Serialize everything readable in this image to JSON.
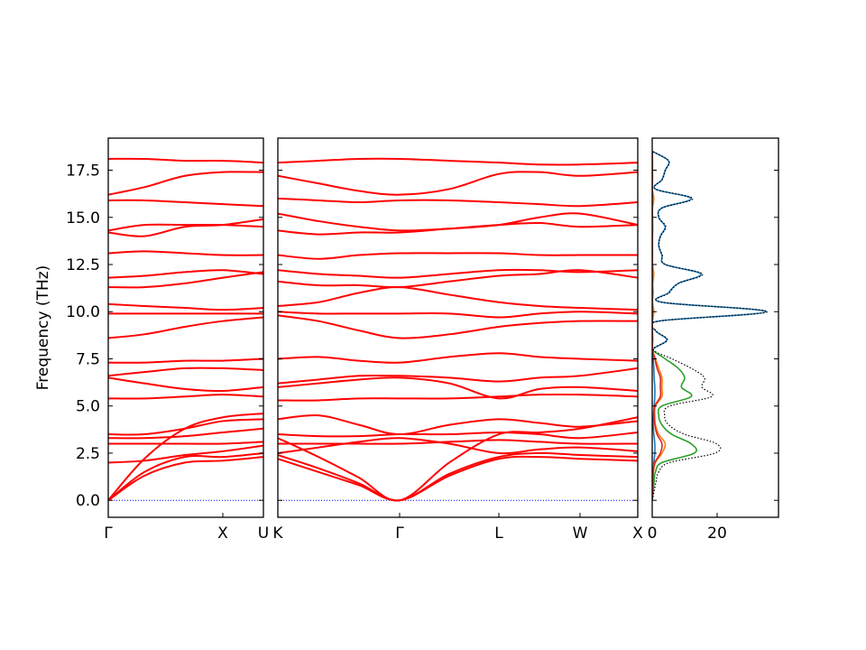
{
  "chart_data": [
    {
      "type": "line",
      "color": "#ff0000",
      "ylabel": "Frequency (THz)",
      "x": [
        0,
        0.4,
        0.85,
        1.27,
        1.72
      ],
      "xlim": [
        0,
        1.72
      ],
      "ylim": [
        -0.9,
        19.2
      ],
      "xticks": [
        {
          "value": 0,
          "label": "Γ"
        },
        {
          "value": 1.27,
          "label": "X"
        },
        {
          "value": 1.72,
          "label": "U"
        }
      ],
      "yticks": [
        {
          "value": 0,
          "label": "0.0"
        },
        2.5,
        {
          "value": 5,
          "label": "5.0"
        },
        7.5,
        {
          "value": 10,
          "label": "10.0"
        },
        12.5,
        {
          "value": 15,
          "label": "15.0"
        },
        17.5
      ],
      "hline": {
        "y": 0,
        "color": "#0000ff"
      },
      "series": [
        {
          "values": [
            0,
            1.3,
            2.0,
            2.1,
            2.3
          ]
        },
        {
          "values": [
            0,
            1.5,
            2.3,
            2.3,
            2.5
          ]
        },
        {
          "values": [
            0,
            2.2,
            3.8,
            4.4,
            4.6
          ]
        },
        {
          "values": [
            2.0,
            2.1,
            2.4,
            2.6,
            2.9
          ]
        },
        {
          "values": [
            3.0,
            3.0,
            3.0,
            3.0,
            3.1
          ]
        },
        {
          "values": [
            3.3,
            3.3,
            3.4,
            3.6,
            3.8
          ]
        },
        {
          "values": [
            3.5,
            3.5,
            3.8,
            4.2,
            4.3
          ]
        },
        {
          "values": [
            5.4,
            5.4,
            5.5,
            5.6,
            5.5
          ]
        },
        {
          "values": [
            6.5,
            6.2,
            5.9,
            5.8,
            6.0
          ]
        },
        {
          "values": [
            6.6,
            6.8,
            7.0,
            7.0,
            6.9
          ]
        },
        {
          "values": [
            7.3,
            7.3,
            7.4,
            7.4,
            7.5
          ]
        },
        {
          "values": [
            8.6,
            8.8,
            9.2,
            9.5,
            9.7
          ]
        },
        {
          "values": [
            9.9,
            9.9,
            9.9,
            9.9,
            9.9
          ]
        },
        {
          "values": [
            10.4,
            10.3,
            10.2,
            10.1,
            10.2
          ]
        },
        {
          "values": [
            11.3,
            11.3,
            11.5,
            11.8,
            12.1
          ]
        },
        {
          "values": [
            11.8,
            11.9,
            12.1,
            12.2,
            12.0
          ]
        },
        {
          "values": [
            13.1,
            13.2,
            13.1,
            13.0,
            13.0
          ]
        },
        {
          "values": [
            14.2,
            14.0,
            14.5,
            14.6,
            14.9
          ]
        },
        {
          "values": [
            14.3,
            14.6,
            14.6,
            14.6,
            14.5
          ]
        },
        {
          "values": [
            15.9,
            15.9,
            15.8,
            15.7,
            15.6
          ]
        },
        {
          "values": [
            16.2,
            16.6,
            17.2,
            17.4,
            17.4
          ]
        },
        {
          "values": [
            18.1,
            18.1,
            18.0,
            18.0,
            17.9
          ]
        }
      ]
    },
    {
      "type": "line",
      "color": "#ff0000",
      "x": [
        0,
        0.45,
        0.9,
        1.35,
        1.9,
        2.45,
        2.9,
        3.35,
        3.99
      ],
      "xlim": [
        0,
        3.99
      ],
      "ylim": [
        -0.9,
        19.2
      ],
      "xticks": [
        {
          "value": 0,
          "label": "K"
        },
        {
          "value": 1.35,
          "label": "Γ"
        },
        {
          "value": 2.45,
          "label": "L"
        },
        {
          "value": 3.35,
          "label": "W"
        },
        {
          "value": 3.99,
          "label": "X"
        }
      ],
      "yticks": [
        0,
        2.5,
        5,
        7.5,
        10,
        12.5,
        15,
        17.5
      ],
      "hline": {
        "y": 0,
        "color": "#0000ff"
      },
      "series": [
        {
          "values": [
            2.2,
            1.5,
            0.8,
            0,
            1.3,
            2.2,
            2.3,
            2.2,
            2.1
          ]
        },
        {
          "values": [
            2.4,
            1.7,
            0.9,
            0,
            1.4,
            2.3,
            2.5,
            2.4,
            2.3
          ]
        },
        {
          "values": [
            3.3,
            2.3,
            1.2,
            0,
            2.0,
            3.5,
            3.6,
            3.8,
            4.4
          ]
        },
        {
          "values": [
            2.5,
            2.8,
            3.1,
            3.3,
            3.0,
            2.5,
            2.7,
            2.8,
            2.6
          ]
        },
        {
          "values": [
            3.0,
            3.0,
            3.0,
            3.0,
            3.1,
            3.2,
            3.1,
            3.0,
            3.0
          ]
        },
        {
          "values": [
            3.5,
            3.4,
            3.4,
            3.5,
            3.5,
            3.6,
            3.5,
            3.3,
            3.6
          ]
        },
        {
          "values": [
            4.3,
            4.5,
            4.0,
            3.5,
            4.0,
            4.3,
            4.1,
            3.9,
            4.2
          ]
        },
        {
          "values": [
            5.3,
            5.3,
            5.4,
            5.4,
            5.4,
            5.5,
            5.6,
            5.6,
            5.5
          ]
        },
        {
          "values": [
            6.0,
            6.2,
            6.4,
            6.5,
            6.2,
            5.4,
            5.9,
            6.0,
            5.8
          ]
        },
        {
          "values": [
            6.2,
            6.4,
            6.6,
            6.6,
            6.5,
            6.3,
            6.5,
            6.6,
            7.0
          ]
        },
        {
          "values": [
            7.5,
            7.6,
            7.4,
            7.3,
            7.6,
            7.8,
            7.6,
            7.5,
            7.4
          ]
        },
        {
          "values": [
            9.8,
            9.5,
            9.0,
            8.6,
            8.8,
            9.2,
            9.4,
            9.5,
            9.5
          ]
        },
        {
          "values": [
            10.0,
            9.9,
            9.9,
            9.9,
            9.9,
            9.7,
            9.9,
            10.0,
            9.9
          ]
        },
        {
          "values": [
            10.3,
            10.5,
            11.0,
            11.3,
            10.9,
            10.5,
            10.3,
            10.2,
            10.1
          ]
        },
        {
          "values": [
            11.6,
            11.4,
            11.4,
            11.3,
            11.6,
            11.9,
            12.0,
            12.2,
            11.8
          ]
        },
        {
          "values": [
            12.2,
            12.0,
            11.9,
            11.8,
            12.0,
            12.2,
            12.2,
            12.1,
            12.2
          ]
        },
        {
          "values": [
            13.0,
            12.8,
            13.0,
            13.1,
            13.1,
            13.1,
            13.0,
            13.0,
            13.0
          ]
        },
        {
          "values": [
            14.3,
            14.1,
            14.2,
            14.2,
            14.4,
            14.6,
            14.7,
            14.5,
            14.6
          ]
        },
        {
          "values": [
            15.2,
            14.8,
            14.5,
            14.3,
            14.4,
            14.6,
            15.0,
            15.2,
            14.6
          ]
        },
        {
          "values": [
            16.0,
            15.9,
            15.8,
            15.9,
            15.9,
            15.8,
            15.7,
            15.6,
            15.8
          ]
        },
        {
          "values": [
            17.2,
            16.8,
            16.4,
            16.2,
            16.5,
            17.3,
            17.4,
            17.2,
            17.4
          ]
        },
        {
          "values": [
            17.9,
            18.0,
            18.1,
            18.1,
            18.0,
            17.9,
            17.8,
            17.8,
            17.9
          ]
        }
      ]
    },
    {
      "type": "line",
      "orientation": "vertical",
      "y": [
        0,
        0.5,
        1,
        1.5,
        2,
        2.5,
        3,
        3.5,
        4,
        4.5,
        5,
        5.5,
        6,
        6.5,
        7,
        7.5,
        8,
        8.5,
        9,
        9.5,
        10,
        10.5,
        11,
        11.5,
        12,
        12.5,
        13,
        13.5,
        14,
        14.5,
        15,
        15.5,
        16,
        16.5,
        17,
        17.5,
        18,
        18.5
      ],
      "xlim": [
        0,
        38.9
      ],
      "ylim": [
        -0.9,
        19.2
      ],
      "xticks": [
        0,
        20
      ],
      "yticks": [
        0,
        2.5,
        5,
        7.5,
        10,
        12.5,
        15,
        17.5
      ],
      "series": [
        {
          "color": "#1f77b4",
          "values": [
            0,
            0.1,
            0.2,
            0.3,
            0.5,
            0.8,
            0.8,
            0.5,
            0.3,
            0.4,
            0.6,
            0.8,
            0.8,
            0.6,
            0.5,
            0.3,
            0.2,
            4.5,
            1.0,
            2.0,
            35,
            3,
            5,
            8,
            15,
            4,
            3,
            2,
            2.5,
            4,
            2,
            3,
            12,
            1,
            3,
            4,
            5,
            0
          ]
        },
        {
          "color": "#ff7f0e",
          "values": [
            0,
            0.1,
            0.2,
            0.4,
            1,
            3,
            4,
            2,
            1,
            0.8,
            1,
            3,
            3,
            3,
            2,
            1,
            0.1,
            0.2,
            0.1,
            0.1,
            0.5,
            0.1,
            0.3,
            0.2,
            0.5,
            0.1,
            0.1,
            0.1,
            0.1,
            0.2,
            0.1,
            0.1,
            0.5,
            0,
            0.1,
            0.1,
            0.1,
            0
          ]
        },
        {
          "color": "#2ca02c",
          "values": [
            0,
            0.3,
            0.6,
            1,
            3,
            13,
            12,
            6,
            3,
            2,
            3,
            12,
            9,
            10,
            8,
            4,
            0,
            0,
            0,
            0,
            0,
            0,
            0,
            0,
            0,
            0,
            0,
            0,
            0,
            0,
            0,
            0,
            0,
            0,
            0,
            0,
            0,
            0
          ]
        },
        {
          "color": "#d62728",
          "values": [
            0,
            0.1,
            0.2,
            0.3,
            0.8,
            2.5,
            3,
            1.5,
            0.8,
            0.6,
            0.8,
            2.5,
            2.5,
            2.5,
            1.5,
            0.8,
            0,
            0,
            0,
            0,
            0,
            0,
            0,
            0,
            0,
            0,
            0,
            0,
            0,
            0,
            0,
            0,
            0,
            0,
            0,
            0,
            0,
            0
          ]
        },
        {
          "color": "#000000",
          "style": "dotted",
          "values": [
            0,
            0.6,
            1.2,
            2,
            5.3,
            19.3,
            19.8,
            10,
            5.1,
            3.8,
            5.4,
            18.3,
            15.3,
            16.1,
            12,
            6.1,
            0.3,
            4.7,
            1.1,
            2.1,
            35.5,
            3.1,
            5.3,
            8.2,
            15.5,
            4.1,
            3.1,
            2.1,
            2.6,
            4.2,
            2.1,
            3.1,
            12.5,
            1,
            3.1,
            4.1,
            5.1,
            0
          ]
        }
      ]
    }
  ]
}
